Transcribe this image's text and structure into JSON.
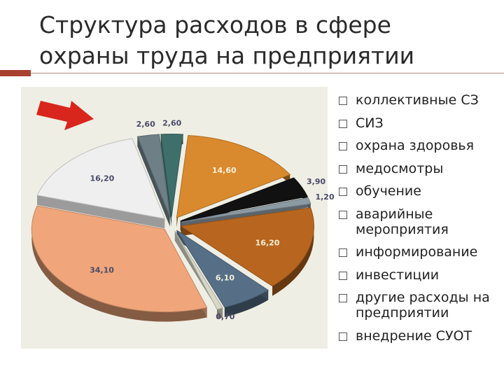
{
  "slide": {
    "title": "Структура расходов в сфере охраны труда на предприятии"
  },
  "legend": [
    {
      "label": "коллективные СЗ"
    },
    {
      "label": "СИЗ"
    },
    {
      "label": "охрана здоровья"
    },
    {
      "label": "медосмотры"
    },
    {
      "label": "обучение"
    },
    {
      "label": "аварийные мероприятия"
    },
    {
      "label": "информирование"
    },
    {
      "label": "инвестиции"
    },
    {
      "label": "другие расходы на предприятии"
    },
    {
      "label": "внедрение СУОТ"
    }
  ],
  "chart_data": {
    "type": "pie",
    "title": "",
    "slices": [
      {
        "name": "коллективные СЗ",
        "value": 2.6,
        "label": "2,60",
        "color": "#3f6f6a"
      },
      {
        "name": "охрана здоровья",
        "value": 14.6,
        "label": "14,60",
        "color": "#d98a2e"
      },
      {
        "name": "медосмотры",
        "value": 3.9,
        "label": "3,90",
        "color": "#111111"
      },
      {
        "name": "обучение",
        "value": 1.2,
        "label": "1,20",
        "color": "#8c9aa3"
      },
      {
        "name": "аварийные мероприятия",
        "value": 16.2,
        "label": "16,20",
        "color": "#b8661f"
      },
      {
        "name": "информирование",
        "value": 6.1,
        "label": "6,10",
        "color": "#566f86"
      },
      {
        "name": "инвестиции",
        "value": 0.7,
        "label": "0,70",
        "color": "#d8d8c8"
      },
      {
        "name": "другие расходы на предприятии",
        "value": 34.1,
        "label": "34,10",
        "color": "#f0a67a"
      },
      {
        "name": "внедрение СУОТ",
        "value": 16.2,
        "label": "16,20",
        "color": "#efefef"
      },
      {
        "name": "СИЗ",
        "value": 2.6,
        "label": "2,60",
        "color": "#6f7f86"
      }
    ],
    "arrow_color": "#d8261d",
    "legend_position": "right"
  }
}
